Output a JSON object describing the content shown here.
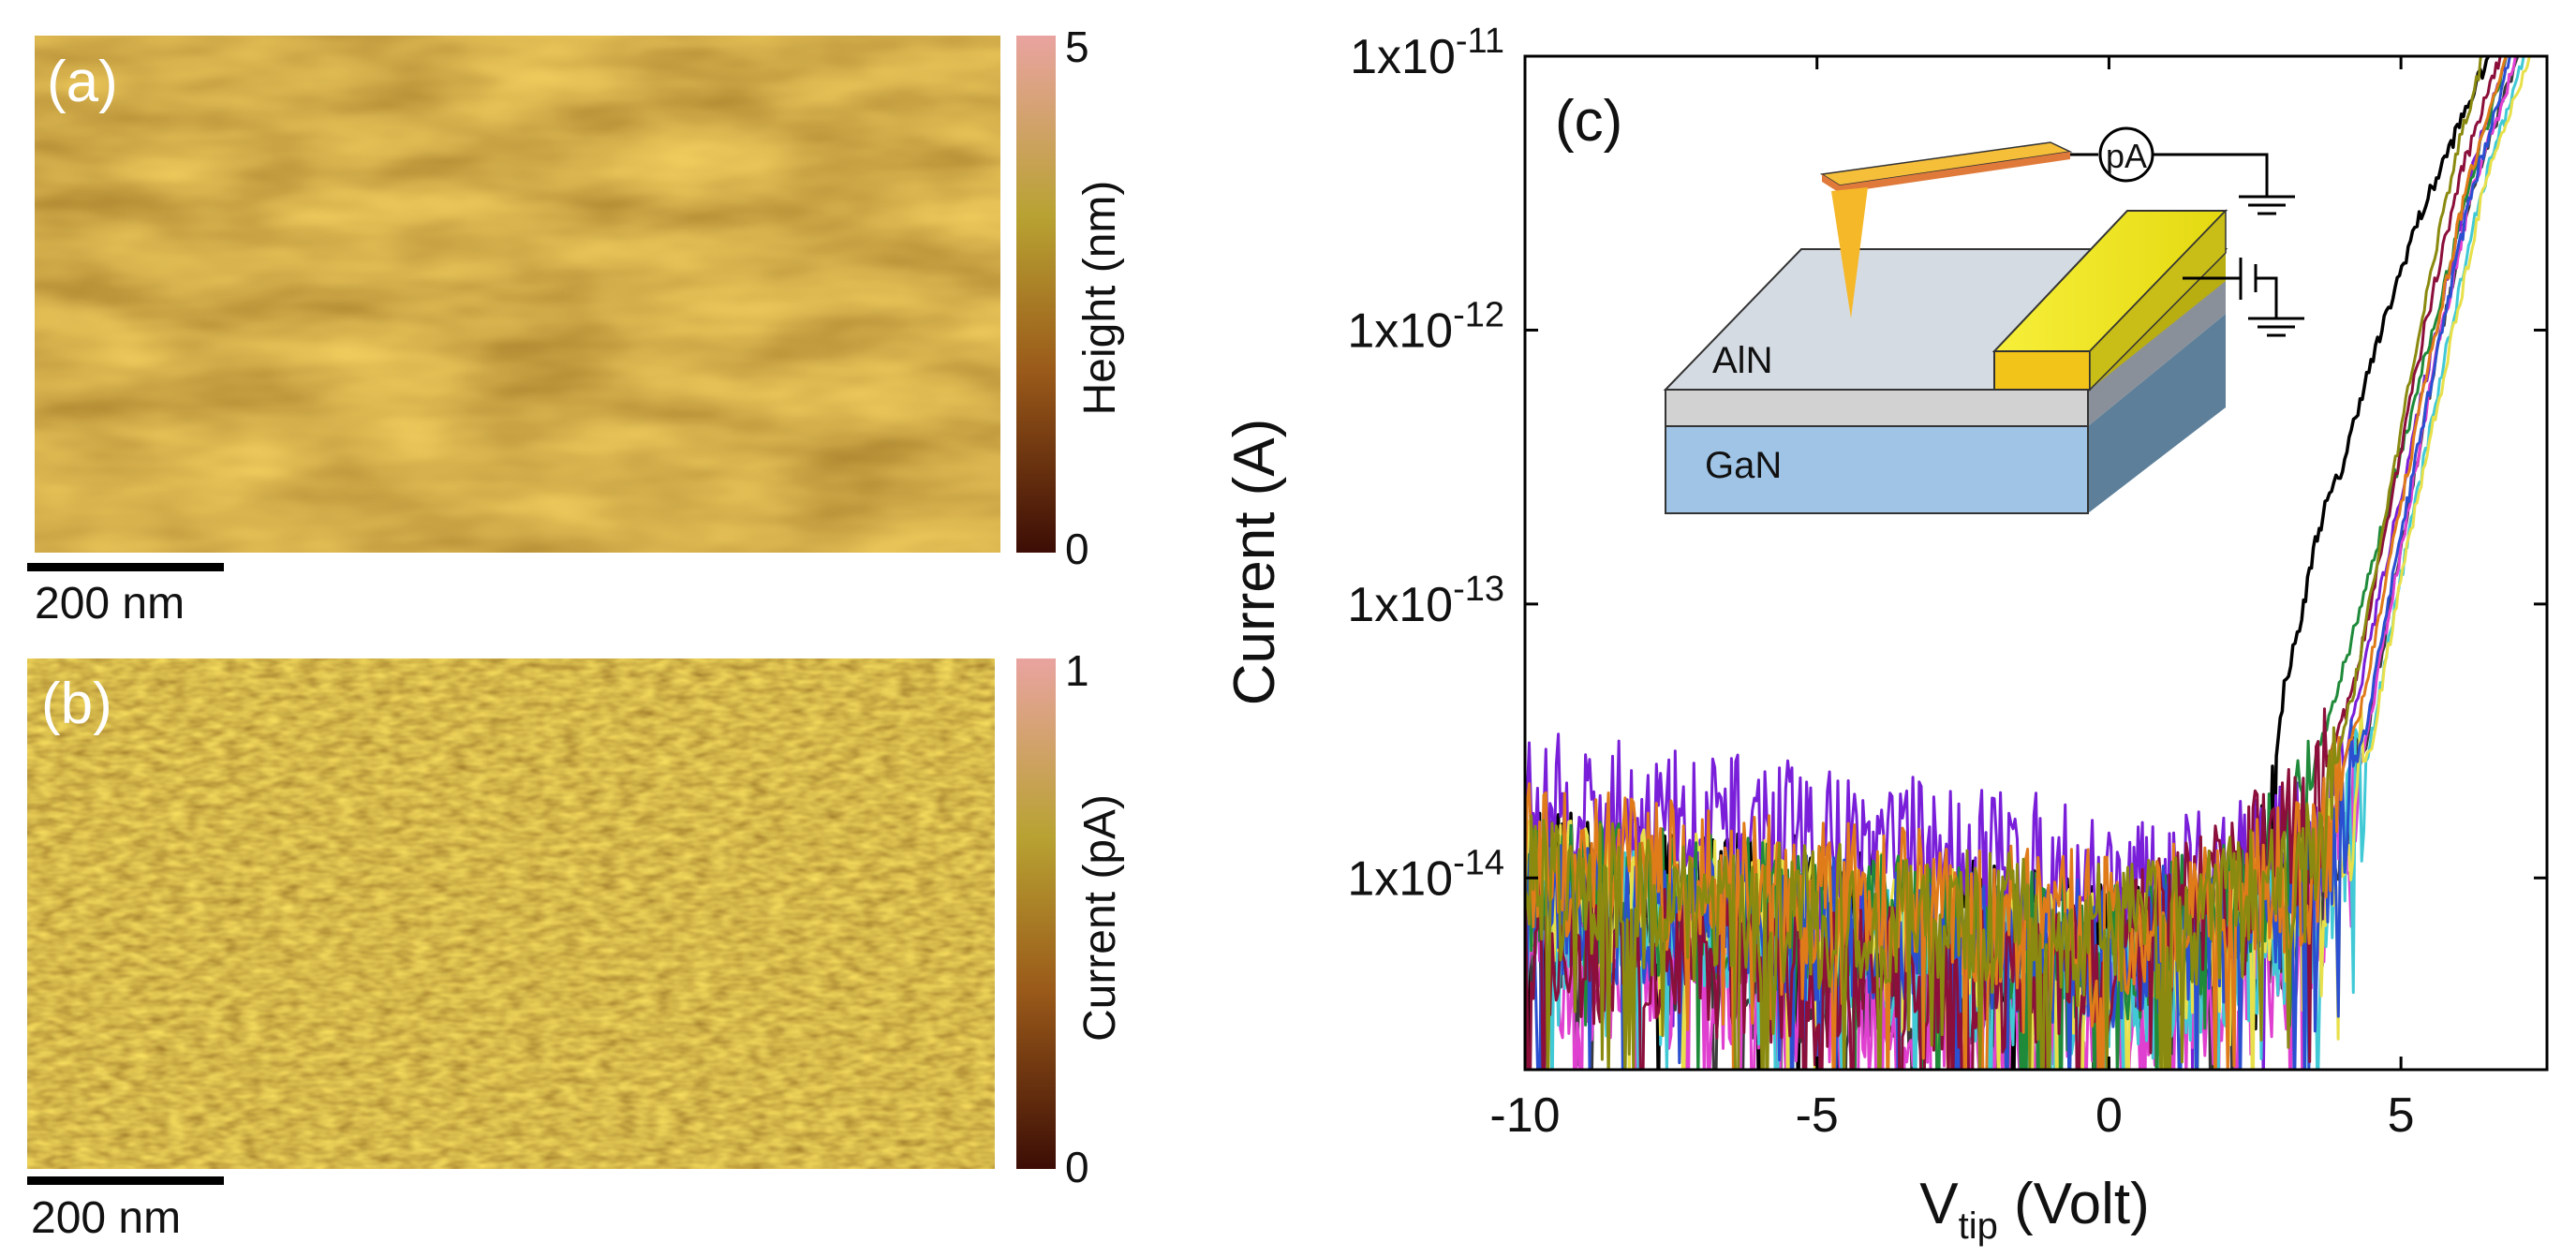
{
  "panel_a": {
    "label": "(a)",
    "colorbar_label": "Height (nm)",
    "colorbar_max": "5",
    "colorbar_min": "0",
    "scalebar_label": "200 nm",
    "colors": {
      "dark": "#3c0d05",
      "mid": "#9a5a1a",
      "yellow": "#b8a232",
      "light": "#e9a3a0"
    }
  },
  "panel_b": {
    "label": "(b)",
    "colorbar_label": "Current (pA)",
    "colorbar_max": "1",
    "colorbar_min": "0",
    "scalebar_label": "200 nm",
    "colors": {
      "dark": "#3c0d05",
      "mid": "#9a5a1a",
      "yellow": "#b8a232",
      "light": "#e9a3a0"
    }
  },
  "chart_data": {
    "type": "line",
    "panel_label": "(c)",
    "title": "",
    "xlabel_main": "V",
    "xlabel_sub": "tip",
    "xlabel_tail": " (Volt)",
    "ylabel": "Current (A)",
    "xlim": [
      -10,
      7.5
    ],
    "ylim_log10": [
      -14.7,
      -11
    ],
    "yscale": "log",
    "xticks": [
      -10,
      -5,
      0,
      5
    ],
    "xtick_labels": [
      "-10",
      "-5",
      "0",
      "5"
    ],
    "yticks_log10": [
      -11,
      -12,
      -13,
      -14
    ],
    "ytick_labels": [
      {
        "base": "1x10",
        "exp": "-11"
      },
      {
        "base": "1x10",
        "exp": "-12"
      },
      {
        "base": "1x10",
        "exp": "-13"
      },
      {
        "base": "1x10",
        "exp": "-14"
      }
    ],
    "series": [
      {
        "name": "black curve (early onset)",
        "color": "#000000",
        "x": [
          -10,
          -6,
          -3,
          0,
          1.5,
          2.4,
          2.8,
          3.0,
          3.3,
          3.5,
          3.7,
          4.0,
          4.3,
          4.6,
          4.9,
          5.2,
          5.5,
          6.0,
          6.5
        ],
        "y_log10": [
          -14.0,
          -14.05,
          -14.15,
          -14.25,
          -14.2,
          -14.05,
          -13.7,
          -13.3,
          -13.05,
          -12.8,
          -12.65,
          -12.5,
          -12.25,
          -12.05,
          -11.85,
          -11.65,
          -11.5,
          -11.25,
          -11.0
        ]
      },
      {
        "name": "purple curve (upper noise band)",
        "color": "#7a1fd9",
        "x": [
          -10,
          -8,
          -6,
          -4,
          -2,
          0,
          1,
          2,
          3,
          3.8,
          4.3,
          4.8,
          5.3,
          5.8,
          6.3,
          6.8
        ],
        "y_log10": [
          -13.7,
          -13.75,
          -13.8,
          -13.85,
          -13.9,
          -14.0,
          -14.05,
          -13.95,
          -13.9,
          -13.8,
          -13.3,
          -12.8,
          -12.3,
          -11.8,
          -11.35,
          -11.0
        ]
      },
      {
        "name": "dark gray curve (noise floor)",
        "color": "#3a3a3a",
        "x": [
          -10,
          -8,
          -6,
          -4,
          -2,
          0,
          1,
          2,
          3,
          3.8,
          4.4,
          5.0,
          5.6,
          6.2,
          7.0
        ],
        "y_log10": [
          -14.1,
          -14.2,
          -14.3,
          -14.35,
          -14.4,
          -14.35,
          -14.3,
          -14.2,
          -14.1,
          -14.0,
          -13.5,
          -12.8,
          -12.1,
          -11.5,
          -11.0
        ]
      },
      {
        "name": "magenta curve",
        "color": "#e040d0",
        "x": [
          -10,
          -6,
          -2,
          0,
          2,
          3.5,
          4.4,
          5.0,
          5.6,
          6.2,
          7.0
        ],
        "y_log10": [
          -14.3,
          -14.4,
          -14.5,
          -14.55,
          -14.4,
          -14.2,
          -13.5,
          -12.8,
          -12.1,
          -11.5,
          -11.0
        ]
      },
      {
        "name": "cyan curve",
        "color": "#41c9d6",
        "x": [
          -10,
          -6,
          -2,
          0,
          2,
          3.5,
          4.4,
          5.0,
          5.7,
          6.3,
          7.1
        ],
        "y_log10": [
          -14.1,
          -14.2,
          -14.3,
          -14.4,
          -14.3,
          -14.1,
          -13.6,
          -12.9,
          -12.15,
          -11.55,
          -11.0
        ]
      },
      {
        "name": "yellow curve",
        "color": "#e8e04a",
        "x": [
          -10,
          -6,
          -2,
          0,
          2,
          3.6,
          4.5,
          5.1,
          5.8,
          6.4,
          7.2
        ],
        "y_log10": [
          -14.0,
          -14.1,
          -14.2,
          -14.3,
          -14.2,
          -14.05,
          -13.5,
          -12.8,
          -12.1,
          -11.5,
          -11.0
        ]
      },
      {
        "name": "green curve",
        "color": "#1f8a3a",
        "x": [
          -10,
          -6,
          -2,
          0,
          2,
          3.2,
          3.8,
          4.4,
          5.0,
          5.6,
          6.2,
          6.8
        ],
        "y_log10": [
          -14.0,
          -14.1,
          -14.2,
          -14.25,
          -14.1,
          -13.8,
          -13.4,
          -12.95,
          -12.45,
          -11.95,
          -11.45,
          -11.0
        ]
      },
      {
        "name": "blue curve",
        "color": "#2a4fd0",
        "x": [
          -10,
          -6,
          -2,
          0,
          2,
          3.6,
          4.4,
          5.0,
          5.6,
          6.2,
          6.9
        ],
        "y_log10": [
          -14.05,
          -14.15,
          -14.2,
          -14.25,
          -14.15,
          -14.0,
          -13.45,
          -12.75,
          -12.1,
          -11.5,
          -11.0
        ]
      },
      {
        "name": "maroon curve",
        "color": "#8b0f3a",
        "x": [
          -10,
          -6,
          -2,
          0,
          2,
          3.4,
          4.2,
          4.8,
          5.4,
          6.0,
          6.7
        ],
        "y_log10": [
          -14.2,
          -14.3,
          -14.35,
          -14.3,
          -14.0,
          -13.8,
          -13.3,
          -12.65,
          -12.0,
          -11.45,
          -11.0
        ]
      },
      {
        "name": "orange curve",
        "color": "#e07b1a",
        "x": [
          -10,
          -6,
          -2,
          0,
          2,
          3.5,
          4.3,
          4.9,
          5.5,
          6.1,
          6.8
        ],
        "y_log10": [
          -13.9,
          -14.0,
          -14.1,
          -14.15,
          -14.05,
          -13.95,
          -13.4,
          -12.75,
          -12.1,
          -11.5,
          -11.0
        ]
      },
      {
        "name": "olive curve",
        "color": "#8a8a10",
        "x": [
          -10,
          -6,
          -2,
          0,
          2,
          3.5,
          4.2,
          4.8,
          5.4,
          5.9,
          6.4
        ],
        "y_log10": [
          -14.0,
          -14.1,
          -14.15,
          -14.2,
          -14.1,
          -13.95,
          -13.3,
          -12.6,
          -11.9,
          -11.4,
          -11.0
        ]
      }
    ],
    "inset": {
      "label_top_layer": "AlN",
      "label_bottom_layer": "GaN",
      "meter_label": "pA",
      "colors": {
        "aln": "#d5dbe3",
        "gan": "#9fc4e6",
        "contact": "#f2ea1a",
        "tip": "#f5b829",
        "cantilever": "#e07a3a"
      }
    }
  }
}
